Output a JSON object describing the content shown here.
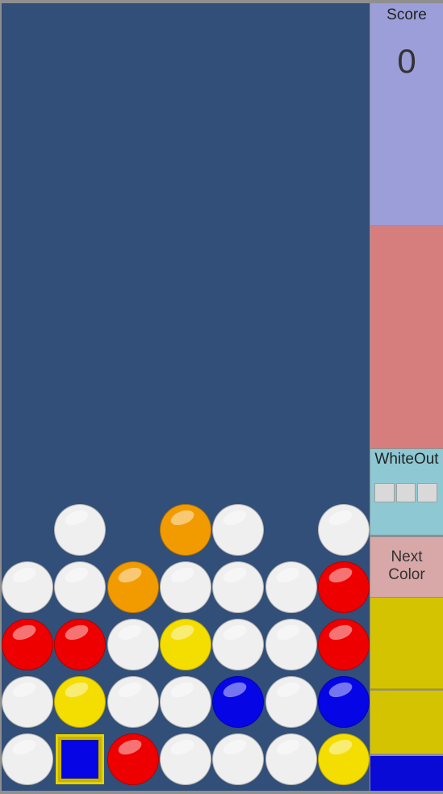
{
  "colors": {
    "white": "#efefef",
    "red": "#ee0000",
    "orange": "#f29b00",
    "yellow": "#f4dd00",
    "blue": "#0505e6"
  },
  "score": {
    "label": "Score",
    "value": "0"
  },
  "whiteout": {
    "label": "WhiteOut",
    "slots": 3
  },
  "next": {
    "label": "Next\nColor",
    "queue": [
      "yellow",
      "yellow",
      "blue"
    ]
  },
  "grid": {
    "rows": 5,
    "cols": 7,
    "cells": [
      [
        null,
        "white",
        null,
        "orange",
        "white",
        null,
        "white"
      ],
      [
        "white",
        "white",
        "orange",
        "white",
        "white",
        "white",
        "red"
      ],
      [
        "red",
        "red",
        "white",
        "yellow",
        "white",
        "white",
        "red"
      ],
      [
        "white",
        "yellow",
        "white",
        "white",
        "blue",
        "white",
        "blue"
      ],
      [
        "white",
        "cursor",
        "red",
        "white",
        "white",
        "white",
        "yellow"
      ]
    ]
  },
  "cursor": {
    "row": 4,
    "col": 1,
    "color": "blue"
  }
}
